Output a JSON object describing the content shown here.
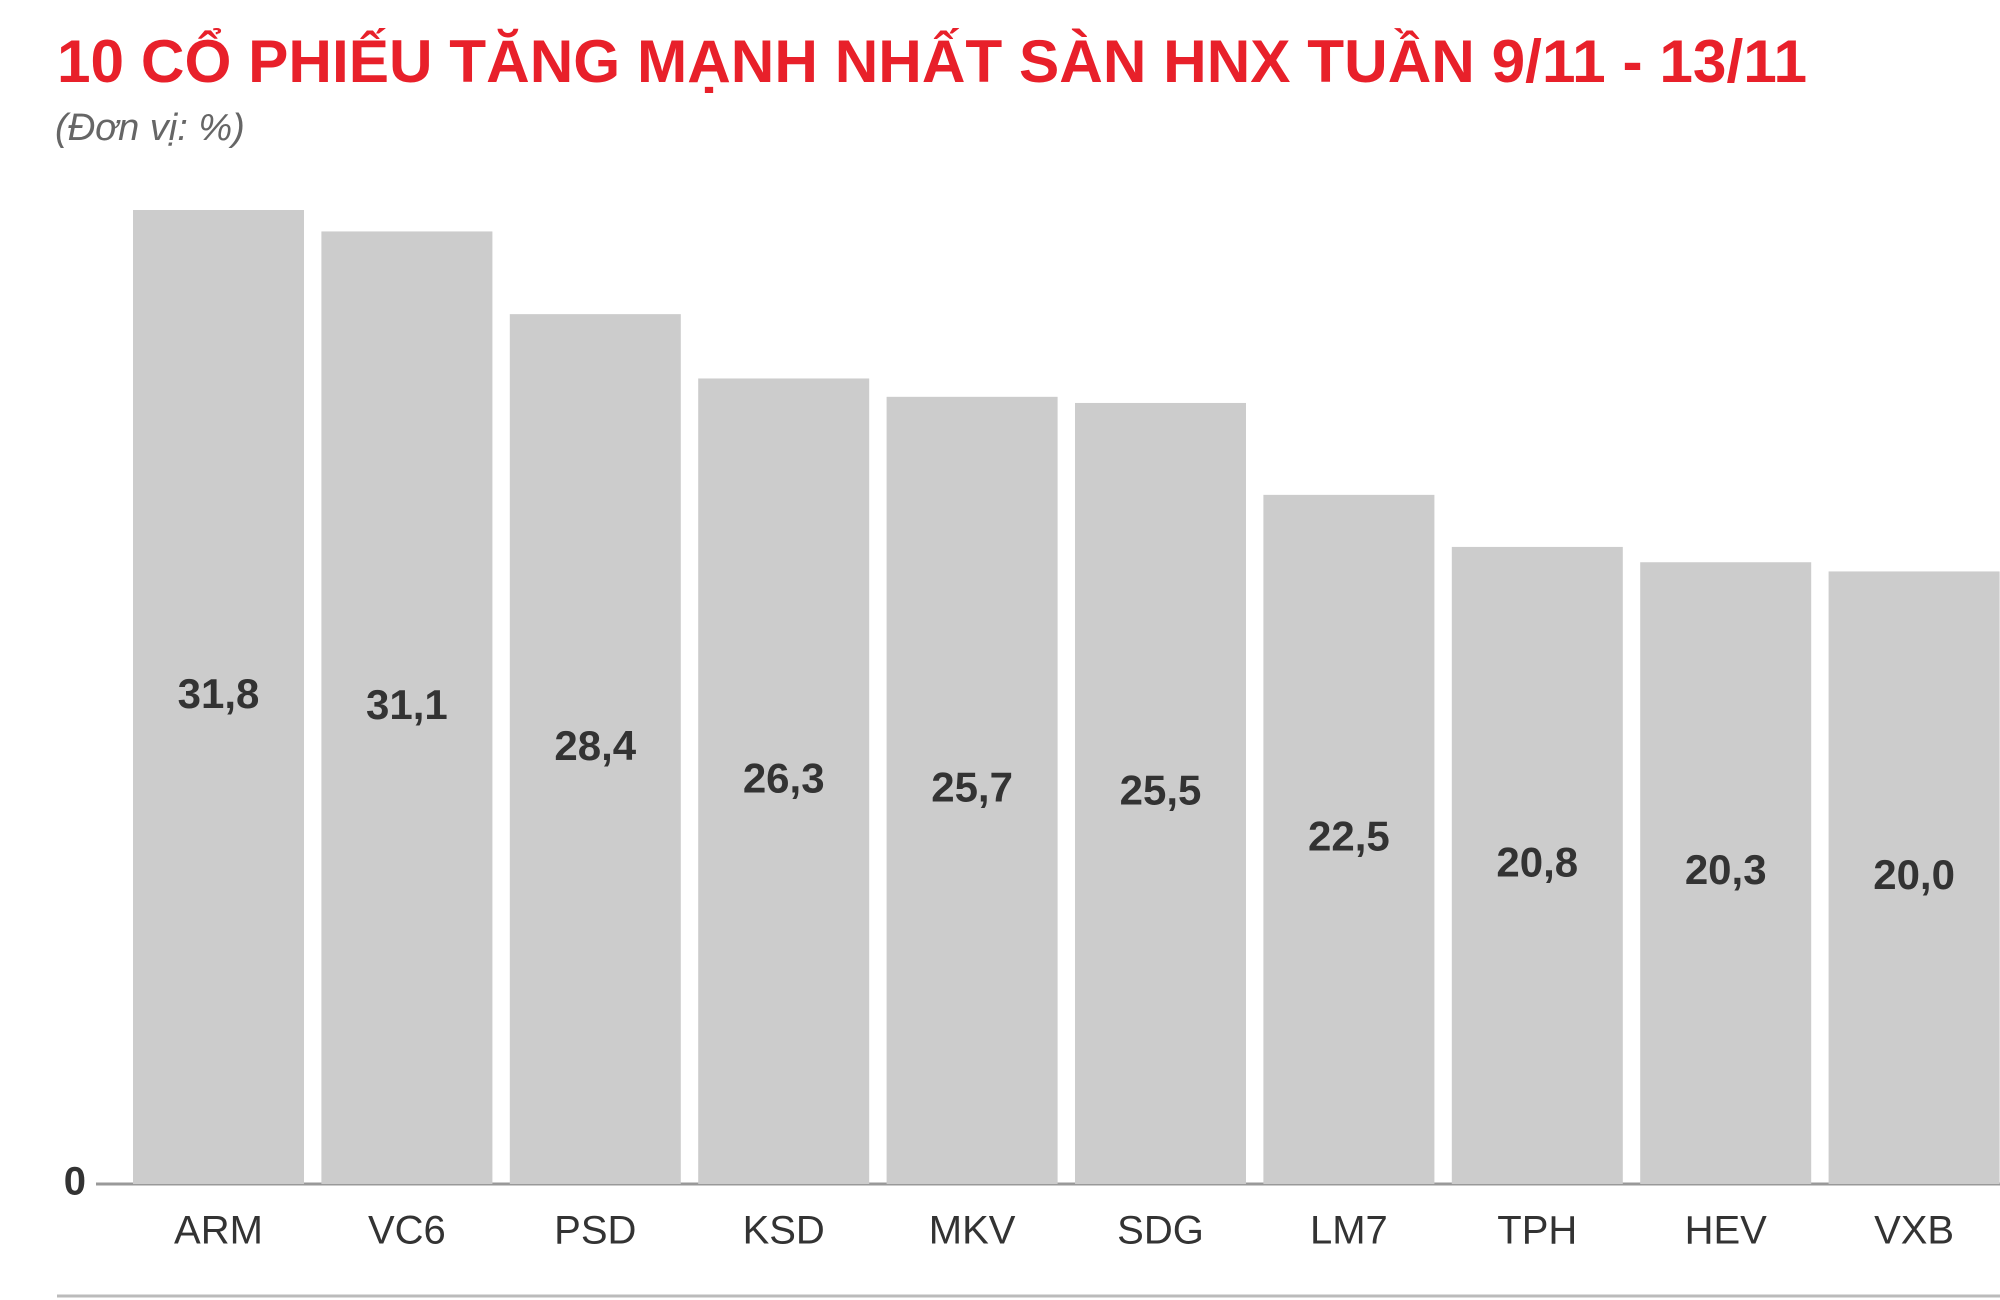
{
  "chart_data": {
    "type": "bar",
    "title": "10 CỔ PHIẾU TĂNG MẠNH NHẤT SÀN HNX TUẦN 9/11 - 13/11",
    "subtitle": "(Đơn vị: %)",
    "categories": [
      "ARM",
      "VC6",
      "PSD",
      "KSD",
      "MKV",
      "SDG",
      "LM7",
      "TPH",
      "HEV",
      "VXB"
    ],
    "values": [
      31.8,
      31.1,
      28.4,
      26.3,
      25.7,
      25.5,
      22.5,
      20.8,
      20.3,
      20.0
    ],
    "value_labels": [
      "31,8",
      "31,1",
      "28,4",
      "26,3",
      "25,7",
      "25,5",
      "22,5",
      "20,8",
      "20,3",
      "20,0"
    ],
    "color": "#cccccc",
    "ylim": [
      0,
      31.8
    ],
    "yticks": [
      0
    ]
  }
}
